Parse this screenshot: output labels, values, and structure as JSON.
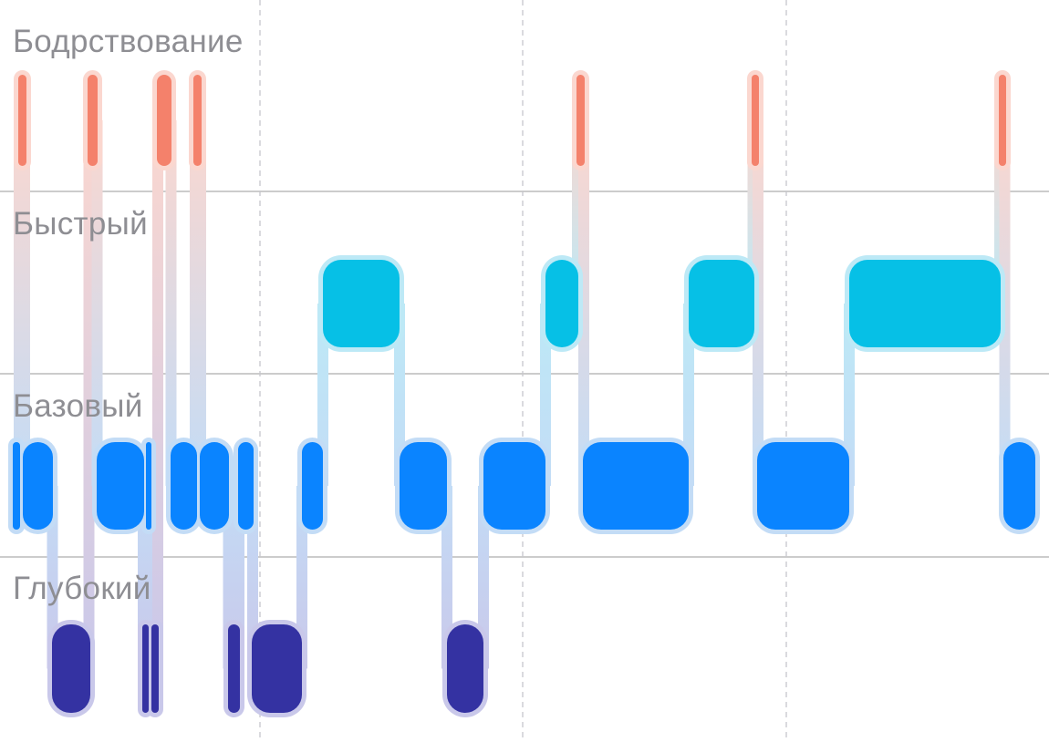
{
  "colors": {
    "background": "#ffffff",
    "label": "#8e8e93",
    "divider": "#9a9a9a",
    "gridline": "#c7c7cc",
    "awake": "#f4816b",
    "awake_halo": "#fbd7cf",
    "rem": "#06c0e6",
    "rem_halo": "#bde9f6",
    "core": "#0a84ff",
    "core_halo": "#c3dcf6",
    "deep": "#3432a2",
    "deep_halo": "#c9c8ea"
  },
  "chart_data": {
    "type": "hypnogram",
    "stages": [
      "Бодрствование",
      "Быстрый",
      "Базовый",
      "Глубокий"
    ],
    "time_unit": "relative (0–1150 across the window, no time labels shown)",
    "x_range": [
      0,
      1150
    ],
    "vertical_gridlines_x": [
      285,
      573,
      862
    ],
    "grid": true,
    "segments": [
      {
        "stage": "Базовый",
        "start": 14,
        "end": 22
      },
      {
        "stage": "Бодрствование",
        "start": 20,
        "end": 29
      },
      {
        "stage": "Базовый",
        "start": 25,
        "end": 58
      },
      {
        "stage": "Глубокий",
        "start": 57,
        "end": 99
      },
      {
        "stage": "Бодрствование",
        "start": 96,
        "end": 107
      },
      {
        "stage": "Базовый",
        "start": 106,
        "end": 158
      },
      {
        "stage": "Глубокий",
        "start": 156,
        "end": 163
      },
      {
        "stage": "Базовый",
        "start": 160,
        "end": 166
      },
      {
        "stage": "Глубокий",
        "start": 166,
        "end": 174
      },
      {
        "stage": "Бодрствование",
        "start": 172,
        "end": 188
      },
      {
        "stage": "Базовый",
        "start": 187,
        "end": 216
      },
      {
        "stage": "Бодрствование",
        "start": 212,
        "end": 221
      },
      {
        "stage": "Базовый",
        "start": 219,
        "end": 251
      },
      {
        "stage": "Глубокий",
        "start": 250,
        "end": 263
      },
      {
        "stage": "Базовый",
        "start": 261,
        "end": 278
      },
      {
        "stage": "Глубокий",
        "start": 276,
        "end": 331
      },
      {
        "stage": "Базовый",
        "start": 331,
        "end": 354
      },
      {
        "stage": "Быстрый",
        "start": 354,
        "end": 438
      },
      {
        "stage": "Базовый",
        "start": 438,
        "end": 490
      },
      {
        "stage": "Глубокий",
        "start": 490,
        "end": 530
      },
      {
        "stage": "Базовый",
        "start": 530,
        "end": 598
      },
      {
        "stage": "Быстрый",
        "start": 598,
        "end": 634
      },
      {
        "stage": "Бодрствование",
        "start": 632,
        "end": 641
      },
      {
        "stage": "Базовый",
        "start": 639,
        "end": 755
      },
      {
        "stage": "Быстрый",
        "start": 755,
        "end": 827
      },
      {
        "stage": "Бодрствование",
        "start": 824,
        "end": 832
      },
      {
        "stage": "Базовый",
        "start": 830,
        "end": 931
      },
      {
        "stage": "Быстрый",
        "start": 931,
        "end": 1097
      },
      {
        "stage": "Бодрствование",
        "start": 1095,
        "end": 1103
      },
      {
        "stage": "Базовый",
        "start": 1100,
        "end": 1135
      }
    ]
  }
}
